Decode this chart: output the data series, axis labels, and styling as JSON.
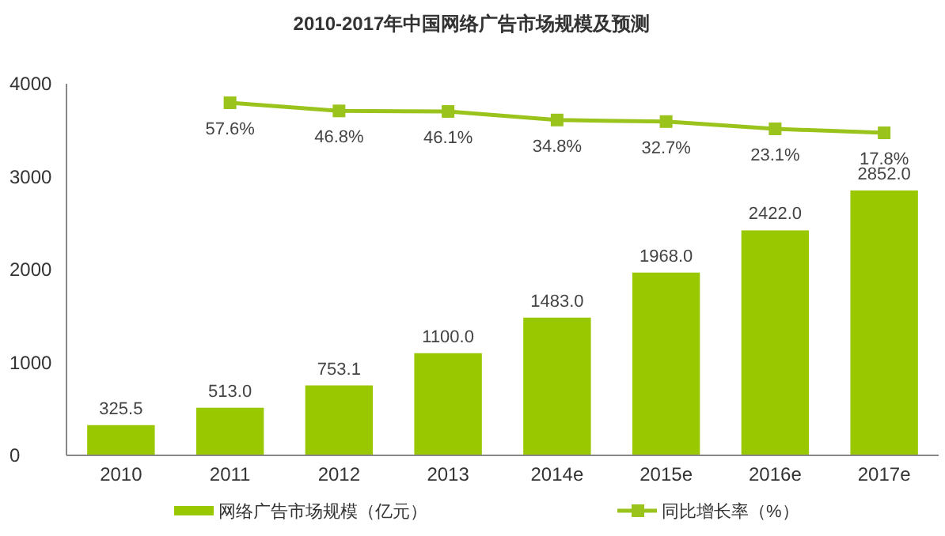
{
  "chart_data": {
    "type": "bar",
    "title": "2010-2017年中国网络广告市场规模及预测",
    "categories": [
      "2010",
      "2011",
      "2012",
      "2013",
      "2014e",
      "2015e",
      "2016e",
      "2017e"
    ],
    "series": [
      {
        "name": "网络广告市场规模（亿元）",
        "color": "#99c700",
        "values": [
          325.5,
          513.0,
          753.1,
          1100.0,
          1483.0,
          1968.0,
          2422.0,
          2852.0
        ],
        "value_labels": [
          "325.5",
          "513.0",
          "753.1",
          "1100.0",
          "1483.0",
          "1968.0",
          "2422.0",
          "2852.0"
        ]
      },
      {
        "name": "同比增长率（%）",
        "type": "line",
        "axis": "y2",
        "color": "#9ac31c",
        "marker": "square",
        "values": [
          null,
          57.6,
          46.8,
          46.1,
          34.8,
          32.7,
          23.1,
          17.8
        ],
        "value_labels": [
          null,
          "57.6%",
          "46.8%",
          "46.1%",
          "34.8%",
          "32.7%",
          "23.1%",
          "17.8%"
        ]
      }
    ],
    "ylim": [
      0,
      4000
    ],
    "yticks": [
      0,
      1000,
      2000,
      3000,
      4000
    ],
    "y2lim": [
      -409,
      82.7
    ],
    "tick_labels": "xy",
    "grid": false,
    "legend": "bottom"
  }
}
